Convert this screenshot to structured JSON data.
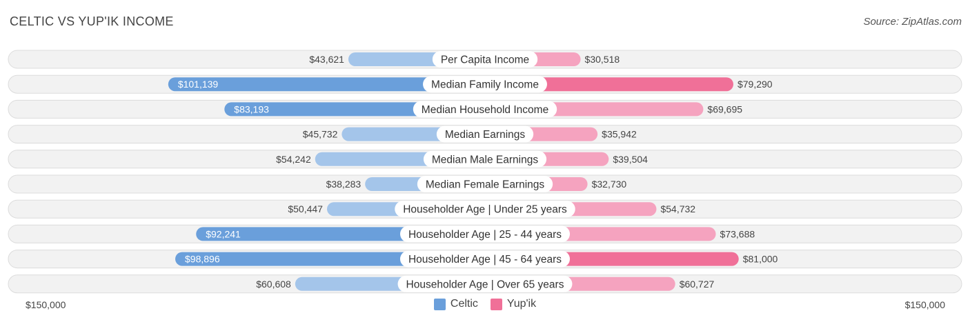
{
  "header": {
    "title": "CELTIC VS YUP'IK INCOME",
    "source": "Source: ZipAtlas.com"
  },
  "colors": {
    "celtic_strong": "#6a9fdb",
    "celtic_light": "#a4c5ea",
    "yupik_strong": "#f07098",
    "yupik_light": "#f5a3bf",
    "track": "#ececec"
  },
  "legend": {
    "celtic": "Celtic",
    "yupik": "Yup'ik"
  },
  "axis": {
    "left_label": "$150,000",
    "right_label": "$150,000"
  },
  "chart_data": {
    "type": "bar",
    "orientation": "diverging-horizontal",
    "max": 150000,
    "categories": [
      "Per Capita Income",
      "Median Family Income",
      "Median Household Income",
      "Median Earnings",
      "Median Male Earnings",
      "Median Female Earnings",
      "Householder Age | Under 25 years",
      "Householder Age | 25 - 44 years",
      "Householder Age | 45 - 64 years",
      "Householder Age | Over 65 years"
    ],
    "series": [
      {
        "name": "Celtic",
        "values": [
          43621,
          101139,
          83193,
          45732,
          54242,
          38283,
          50447,
          92241,
          98896,
          60608
        ],
        "labels": [
          "$43,621",
          "$101,139",
          "$83,193",
          "$45,732",
          "$54,242",
          "$38,283",
          "$50,447",
          "$92,241",
          "$98,896",
          "$60,608"
        ]
      },
      {
        "name": "Yup'ik",
        "values": [
          30518,
          79290,
          69695,
          35942,
          39504,
          32730,
          54732,
          73688,
          81000,
          60727
        ],
        "labels": [
          "$30,518",
          "$79,290",
          "$69,695",
          "$35,942",
          "$39,504",
          "$32,730",
          "$54,732",
          "$73,688",
          "$81,000",
          "$60,727"
        ]
      }
    ]
  }
}
